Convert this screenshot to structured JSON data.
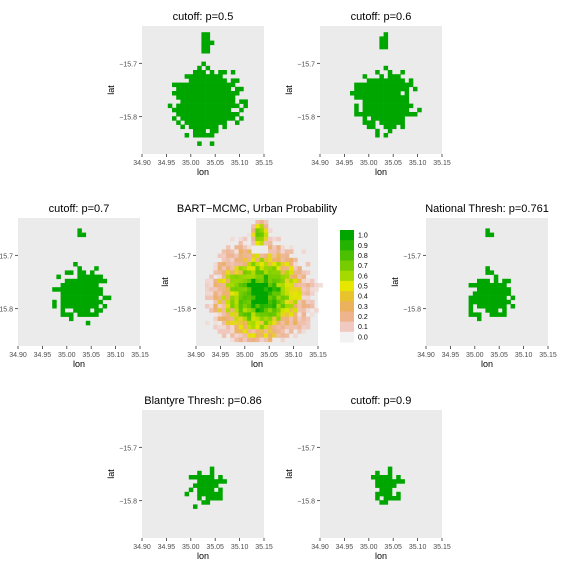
{
  "figure": {
    "x_label": "lon",
    "y_label": "lat",
    "x_ticks": [
      "34.90",
      "34.95",
      "35.00",
      "35.05",
      "35.10",
      "35.15"
    ],
    "y_ticks": [
      "−15.7",
      "−15.8"
    ],
    "panel_bg": "#ebebeb",
    "urban_color": "#00a600"
  },
  "chart_data": [
    {
      "type": "heatmap",
      "title": "cutoff: p=0.5",
      "threshold": 0.5,
      "xlabel": "lon",
      "ylabel": "lat",
      "xlim": [
        34.9,
        35.15
      ],
      "ylim": [
        -15.87,
        -15.63
      ],
      "x_ticks": [
        34.9,
        34.95,
        35.0,
        35.05,
        35.1,
        35.15
      ],
      "y_ticks": [
        -15.7,
        -15.8
      ],
      "fill": "#00a600",
      "legend": null
    },
    {
      "type": "heatmap",
      "title": "cutoff: p=0.6",
      "threshold": 0.6,
      "xlabel": "lon",
      "ylabel": "lat",
      "xlim": [
        34.9,
        35.15
      ],
      "ylim": [
        -15.87,
        -15.63
      ],
      "x_ticks": [
        34.9,
        34.95,
        35.0,
        35.05,
        35.1,
        35.15
      ],
      "y_ticks": [
        -15.7,
        -15.8
      ],
      "fill": "#00a600",
      "legend": null
    },
    {
      "type": "heatmap",
      "title": "cutoff: p=0.7",
      "threshold": 0.7,
      "xlabel": "lon",
      "ylabel": "lat",
      "xlim": [
        34.9,
        35.15
      ],
      "ylim": [
        -15.87,
        -15.63
      ],
      "x_ticks": [
        34.9,
        34.95,
        35.0,
        35.05,
        35.1,
        35.15
      ],
      "y_ticks": [
        -15.7,
        -15.8
      ],
      "fill": "#00a600",
      "legend": null
    },
    {
      "type": "heatmap",
      "title": "BART−MCMC, Urban Probability",
      "xlabel": "lon",
      "ylabel": "lat",
      "xlim": [
        34.9,
        35.15
      ],
      "ylim": [
        -15.87,
        -15.63
      ],
      "x_ticks": [
        34.9,
        34.95,
        35.0,
        35.05,
        35.1,
        35.15
      ],
      "y_ticks": [
        -15.7,
        -15.8
      ],
      "color_scale": "terrain",
      "legend": {
        "ticks": [
          "1.0",
          "0.9",
          "0.8",
          "0.7",
          "0.6",
          "0.5",
          "0.4",
          "0.3",
          "0.2",
          "0.1",
          "0.0"
        ],
        "colors": [
          "#00a600",
          "#24b300",
          "#4bbf00",
          "#76cc00",
          "#a6d900",
          "#e6e600",
          "#e8c32e",
          "#ebb25e",
          "#edb48e",
          "#f0c9c0",
          "#f2f2f2"
        ]
      }
    },
    {
      "type": "heatmap",
      "title": "National Thresh: p=0.761",
      "threshold": 0.761,
      "xlabel": "lon",
      "ylabel": "lat",
      "xlim": [
        34.9,
        35.15
      ],
      "ylim": [
        -15.87,
        -15.63
      ],
      "x_ticks": [
        34.9,
        34.95,
        35.0,
        35.05,
        35.1,
        35.15
      ],
      "y_ticks": [
        -15.7,
        -15.8
      ],
      "fill": "#00a600",
      "legend": null
    },
    {
      "type": "heatmap",
      "title": "Blantyre Thresh: p=0.86",
      "threshold": 0.86,
      "xlabel": "lon",
      "ylabel": "lat",
      "xlim": [
        34.9,
        35.15
      ],
      "ylim": [
        -15.87,
        -15.63
      ],
      "x_ticks": [
        34.9,
        34.95,
        35.0,
        35.05,
        35.1,
        35.15
      ],
      "y_ticks": [
        -15.7,
        -15.8
      ],
      "fill": "#00a600",
      "legend": null
    },
    {
      "type": "heatmap",
      "title": "cutoff: p=0.9",
      "threshold": 0.9,
      "xlabel": "lon",
      "ylabel": "lat",
      "xlim": [
        34.9,
        35.15
      ],
      "ylim": [
        -15.87,
        -15.63
      ],
      "x_ticks": [
        34.9,
        34.95,
        35.0,
        35.05,
        35.1,
        35.15
      ],
      "y_ticks": [
        -15.7,
        -15.8
      ],
      "fill": "#00a600",
      "legend": null
    }
  ]
}
